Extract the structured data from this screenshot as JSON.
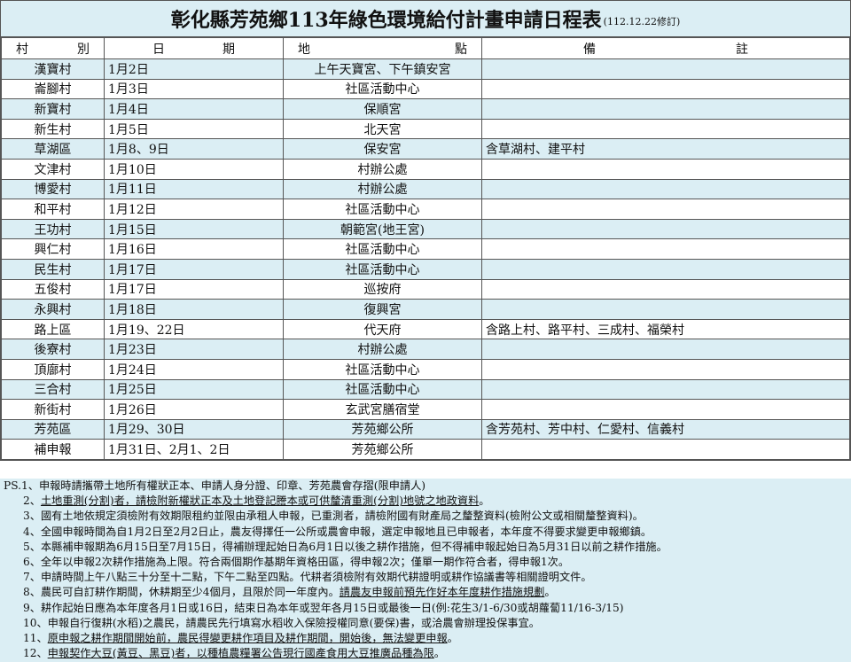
{
  "title": "彰化縣芳苑鄉113年綠色環境給付計畫申請日程表",
  "revision": "(112.12.22修訂)",
  "headers": [
    [
      "村",
      "別"
    ],
    [
      "日",
      "期"
    ],
    [
      "地",
      "點"
    ],
    [
      "備",
      "註"
    ]
  ],
  "rows": [
    {
      "village": "漢寶村",
      "date": "1月2日",
      "place": "上午天寶宮、下午鎮安宮",
      "note": ""
    },
    {
      "village": "崙腳村",
      "date": "1月3日",
      "place": "社區活動中心",
      "note": ""
    },
    {
      "village": "新寶村",
      "date": "1月4日",
      "place": "保順宮",
      "note": ""
    },
    {
      "village": "新生村",
      "date": "1月5日",
      "place": "北天宮",
      "note": ""
    },
    {
      "village": "草湖區",
      "date": "1月8、9日",
      "place": "保安宮",
      "note": "含草湖村、建平村"
    },
    {
      "village": "文津村",
      "date": "1月10日",
      "place": "村辦公處",
      "note": ""
    },
    {
      "village": "博愛村",
      "date": "1月11日",
      "place": "村辦公處",
      "note": ""
    },
    {
      "village": "和平村",
      "date": "1月12日",
      "place": "社區活動中心",
      "note": ""
    },
    {
      "village": "王功村",
      "date": "1月15日",
      "place": "朝範宮(地王宮)",
      "note": ""
    },
    {
      "village": "興仁村",
      "date": "1月16日",
      "place": "社區活動中心",
      "note": ""
    },
    {
      "village": "民生村",
      "date": "1月17日",
      "place": "社區活動中心",
      "note": ""
    },
    {
      "village": "五俊村",
      "date": "1月17日",
      "place": "巡按府",
      "note": ""
    },
    {
      "village": "永興村",
      "date": "1月18日",
      "place": "復興宮",
      "note": ""
    },
    {
      "village": "路上區",
      "date": "1月19、22日",
      "place": "代天府",
      "note": "含路上村、路平村、三成村、福榮村"
    },
    {
      "village": "後寮村",
      "date": "1月23日",
      "place": "村辦公處",
      "note": ""
    },
    {
      "village": "頂廍村",
      "date": "1月24日",
      "place": "社區活動中心",
      "note": ""
    },
    {
      "village": "三合村",
      "date": "1月25日",
      "place": "社區活動中心",
      "note": ""
    },
    {
      "village": "新街村",
      "date": "1月26日",
      "place": "玄武宮膳宿堂",
      "note": ""
    },
    {
      "village": "芳苑區",
      "date": "1月29、30日",
      "place": "芳苑鄉公所",
      "note": "含芳苑村、芳中村、仁愛村、信義村"
    },
    {
      "village": "補申報",
      "date": "1月31日、2月1、2日",
      "place": "芳苑鄉公所",
      "note": ""
    }
  ],
  "notes": [
    {
      "prefix": "PS.1、",
      "text": "申報時請攜帶土地所有權狀正本、申請人身分證、印章、芳苑農會存摺(限申請人)",
      "underline": "",
      "tail": ""
    },
    {
      "prefix": "2、",
      "text": "",
      "underline": "土地重測(分割)者，請檢附新權狀正本及土地登記謄本或可供釐清重測(分割)地號之地政資料",
      "tail": "。"
    },
    {
      "prefix": "3、",
      "text": "國有土地依規定須檢附有效期限租約並限由承租人申報，已重測者，請檢附國有財產局之釐整資料(檢附公文或相關釐整資料)。",
      "underline": "",
      "tail": ""
    },
    {
      "prefix": "4、",
      "text": "全國申報時間為自1月2日至2月2日止，農友得擇任一公所或農會申報，選定申報地且已申報者，本年度不得要求變更申報鄉鎮。",
      "underline": "",
      "tail": ""
    },
    {
      "prefix": "5、",
      "text": "本縣補申報期為6月15日至7月15日，得補辦理起始日為6月1日以後之耕作措施，但不得補申報起始日為5月31日以前之耕作措施。",
      "underline": "",
      "tail": ""
    },
    {
      "prefix": "6、",
      "text": "全年以申報2次耕作措施為上限。符合兩個期作基期年資格田區，得申報2次；僅單一期作符合者，得申報1次。",
      "underline": "",
      "tail": ""
    },
    {
      "prefix": "7、",
      "text": "申請時間上午八點三十分至十二點，下午二點至四點。代耕者須檢附有效期代耕證明或耕作協議書等相關證明文件。",
      "underline": "",
      "tail": ""
    },
    {
      "prefix": "8、",
      "text": "農民可自訂耕作期間，休耕期至少4個月，且限於同一年度內。",
      "underline": "請農友申報前預先作好本年度耕作措施規劃",
      "tail": "。"
    },
    {
      "prefix": "9、",
      "text": "耕作起始日應為本年度各月1日或16日，結束日為本年或翌年各月15日或最後一日(例:花生3/1-6/30或胡蘿蔔11/16-3/15)",
      "underline": "",
      "tail": ""
    },
    {
      "prefix": "10、",
      "text": "申報自行復耕(水稻)之農民，請農民先行填寫水稻收入保險授權同意(要保)書，或洽農會辦理投保事宜。",
      "underline": "",
      "tail": ""
    },
    {
      "prefix": "11、",
      "text": "",
      "underline": "原申報之耕作期間開始前，農民得變更耕作項目及耕作期間，開始後，無法變更申報",
      "tail": "。"
    },
    {
      "prefix": "12、",
      "text": "",
      "underline": "申報契作大豆(黃豆、黑豆)者，以種植農糧署公告現行國產食用大豆推廣品種為限",
      "tail": "。"
    }
  ]
}
